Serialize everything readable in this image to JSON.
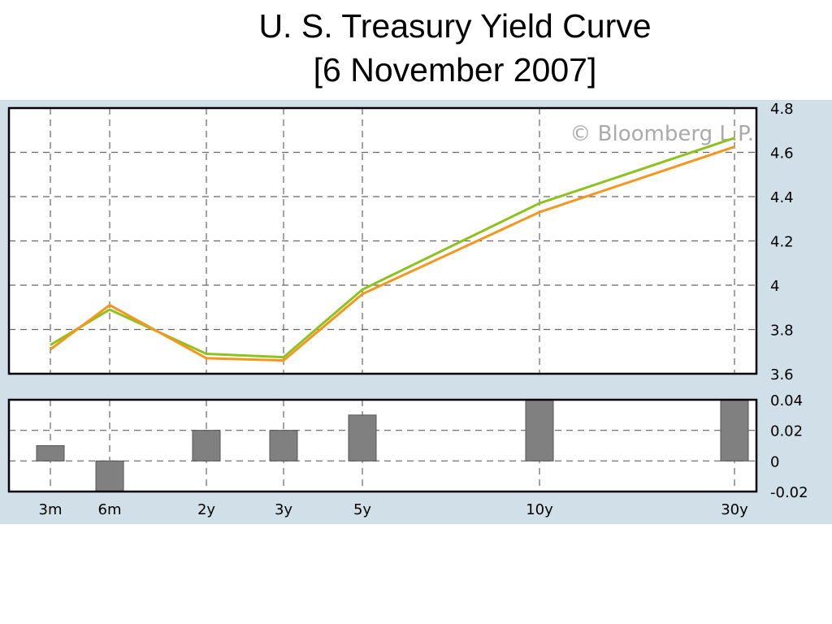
{
  "header": {
    "title_line1": "U. S. Treasury Yield Curve",
    "title_line2": "[6 November 2007]"
  },
  "watermark": "© Bloomberg L.P.",
  "colors": {
    "panel_bg": "#d1e0e8",
    "series_green": "#8dc21f",
    "series_orange": "#f5961e",
    "bars": "#808080"
  },
  "chart_data": [
    {
      "type": "line",
      "categories": [
        "3m",
        "6m",
        "2y",
        "3y",
        "5y",
        "10y",
        "30y"
      ],
      "series": [
        {
          "color": "#8dc21f",
          "values": [
            3.73,
            3.89,
            3.69,
            3.675,
            3.98,
            4.37,
            4.665
          ]
        },
        {
          "color": "#f5961e",
          "values": [
            3.71,
            3.91,
            3.67,
            3.66,
            3.96,
            4.33,
            4.625
          ]
        }
      ],
      "ylim": [
        3.6,
        4.8
      ],
      "yticks": [
        "4.8",
        "4.6",
        "4.4",
        "4.2",
        "4",
        "3.8",
        "3.6"
      ],
      "grid": true
    },
    {
      "type": "bar",
      "categories": [
        "3m",
        "6m",
        "2y",
        "3y",
        "5y",
        "10y",
        "30y"
      ],
      "values": [
        0.01,
        -0.02,
        0.02,
        0.02,
        0.03,
        0.04,
        0.04
      ],
      "ylim": [
        -0.02,
        0.04
      ],
      "yticks": [
        "0.04",
        "0.02",
        "0",
        "-0.02"
      ],
      "grid": true
    }
  ]
}
